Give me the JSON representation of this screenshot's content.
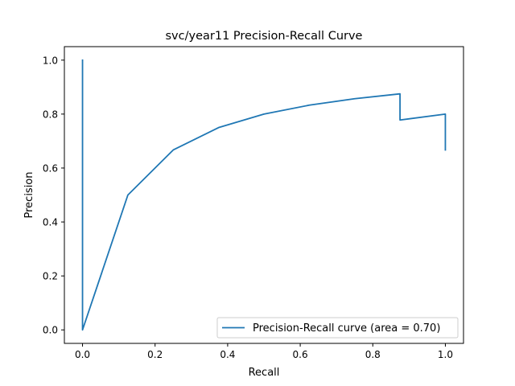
{
  "chart_data": {
    "type": "line",
    "title": "svc/year11 Precision-Recall Curve",
    "xlabel": "Recall",
    "ylabel": "Precision",
    "xlim": [
      -0.05,
      1.05
    ],
    "ylim": [
      -0.05,
      1.05
    ],
    "xticks": [
      0.0,
      0.2,
      0.4,
      0.6,
      0.8,
      1.0
    ],
    "xtick_labels": [
      "0.0",
      "0.2",
      "0.4",
      "0.6",
      "0.8",
      "1.0"
    ],
    "yticks": [
      0.0,
      0.2,
      0.4,
      0.6,
      0.8,
      1.0
    ],
    "ytick_labels": [
      "0.0",
      "0.2",
      "0.4",
      "0.6",
      "0.8",
      "1.0"
    ],
    "grid": false,
    "legend_position": "lower right",
    "series": [
      {
        "name": "Precision-Recall curve (area = 0.70)",
        "color": "#1f77b4",
        "x": [
          0.0,
          0.0,
          0.0,
          0.125,
          0.25,
          0.375,
          0.5,
          0.625,
          0.75,
          0.875,
          0.875,
          1.0,
          1.0
        ],
        "y": [
          1.0,
          0.0,
          0.0,
          0.5,
          0.667,
          0.75,
          0.8,
          0.833,
          0.857,
          0.875,
          0.778,
          0.8,
          0.667
        ]
      }
    ]
  }
}
